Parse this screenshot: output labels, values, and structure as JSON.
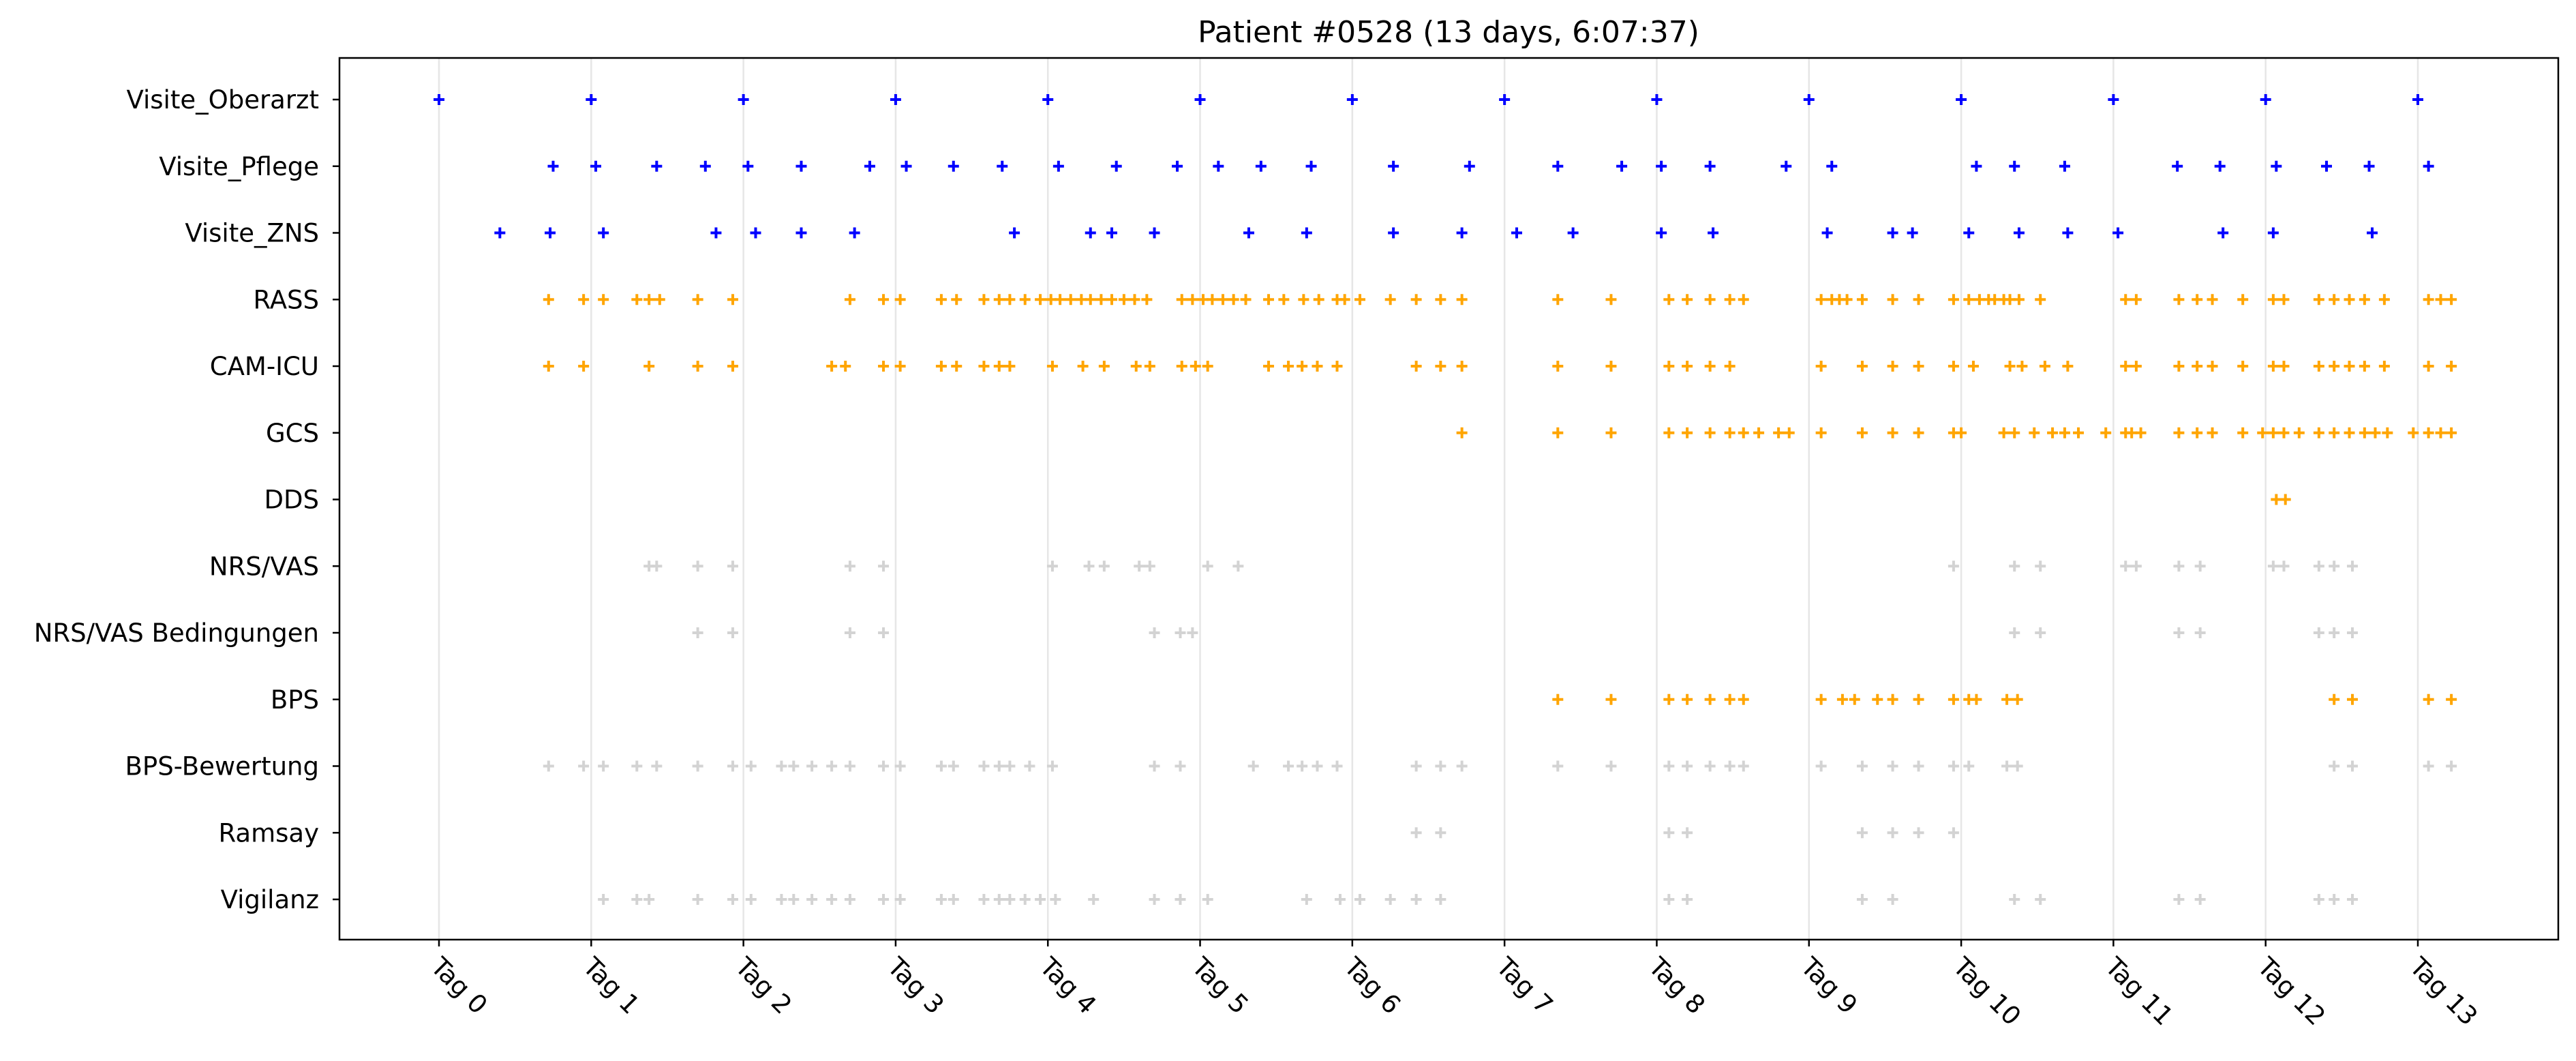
{
  "chart_data": {
    "type": "scatter",
    "title": "Patient #0528 (13 days, 6:07:37)",
    "xlabel": "",
    "ylabel": "",
    "x_unit": "days",
    "xlim": [
      -0.66,
      13.91
    ],
    "x_ticks": [
      0,
      1,
      2,
      3,
      4,
      5,
      6,
      7,
      8,
      9,
      10,
      11,
      12,
      13
    ],
    "x_tick_labels": [
      "Tag 0",
      "Tag 1",
      "Tag 2",
      "Tag 3",
      "Tag 4",
      "Tag 5",
      "Tag 6",
      "Tag 7",
      "Tag 8",
      "Tag 9",
      "Tag 10",
      "Tag 11",
      "Tag 12",
      "Tag 13"
    ],
    "vertical_gridlines": true,
    "marker": "+",
    "colors": {
      "physician": "#0000ff",
      "assessment": "#ffa500",
      "other": "#d3d3d3",
      "grid": "#e6e6e6"
    },
    "categories": [
      "Visite_Oberarzt",
      "Visite_Pflege",
      "Visite_ZNS",
      "RASS",
      "CAM-ICU",
      "GCS",
      "DDS",
      "NRS/VAS",
      "NRS/VAS Bedingungen",
      "BPS",
      "BPS-Bewertung",
      "Ramsay",
      "Vigilanz"
    ],
    "series": [
      {
        "name": "Visite_Oberarzt",
        "color": "#0000ff",
        "x": [
          0.0,
          1.0,
          2.0,
          3.0,
          4.0,
          5.0,
          6.0,
          7.0,
          8.0,
          9.0,
          10.0,
          11.0,
          12.0,
          13.0
        ]
      },
      {
        "name": "Visite_Pflege",
        "color": "#0000ff",
        "x": [
          0.75,
          1.03,
          1.43,
          1.75,
          2.03,
          2.38,
          2.83,
          3.07,
          3.38,
          3.7,
          4.07,
          4.45,
          4.85,
          5.12,
          5.4,
          5.73,
          6.27,
          6.77,
          7.35,
          7.77,
          8.03,
          8.35,
          8.85,
          9.15,
          10.1,
          10.35,
          10.68,
          11.42,
          11.7,
          12.07,
          12.4,
          12.68,
          13.07
        ]
      },
      {
        "name": "Visite_ZNS",
        "color": "#0000ff",
        "x": [
          0.4,
          0.73,
          1.08,
          1.82,
          2.08,
          2.38,
          2.73,
          3.78,
          4.28,
          4.42,
          4.7,
          5.32,
          5.7,
          6.27,
          6.72,
          7.08,
          7.45,
          8.03,
          8.37,
          9.12,
          9.55,
          9.68,
          10.05,
          10.38,
          10.7,
          11.03,
          11.72,
          12.05,
          12.7
        ]
      },
      {
        "name": "RASS",
        "color": "#ffa500",
        "x": [
          0.72,
          0.95,
          1.08,
          1.3,
          1.38,
          1.45,
          1.7,
          1.93,
          2.7,
          2.92,
          3.03,
          3.3,
          3.4,
          3.58,
          3.68,
          3.75,
          3.85,
          3.95,
          4.02,
          4.08,
          4.15,
          4.22,
          4.28,
          4.35,
          4.42,
          4.5,
          4.57,
          4.65,
          4.88,
          4.95,
          5.02,
          5.08,
          5.15,
          5.22,
          5.3,
          5.45,
          5.55,
          5.68,
          5.78,
          5.9,
          5.95,
          6.05,
          6.25,
          6.42,
          6.58,
          6.72,
          7.35,
          7.7,
          8.08,
          8.2,
          8.35,
          8.48,
          8.57,
          9.08,
          9.15,
          9.2,
          9.25,
          9.35,
          9.55,
          9.72,
          9.95,
          10.05,
          10.12,
          10.18,
          10.22,
          10.28,
          10.32,
          10.38,
          10.52,
          11.08,
          11.15,
          11.43,
          11.55,
          11.65,
          11.85,
          12.05,
          12.12,
          12.35,
          12.45,
          12.55,
          12.65,
          12.78,
          13.07,
          13.15,
          13.22
        ]
      },
      {
        "name": "CAM-ICU",
        "color": "#ffa500",
        "x": [
          0.72,
          0.95,
          1.38,
          1.7,
          1.93,
          2.58,
          2.67,
          2.92,
          3.03,
          3.3,
          3.4,
          3.58,
          3.68,
          3.75,
          4.03,
          4.23,
          4.37,
          4.58,
          4.67,
          4.88,
          4.97,
          5.05,
          5.45,
          5.58,
          5.67,
          5.77,
          5.9,
          6.42,
          6.58,
          6.72,
          7.35,
          7.7,
          8.08,
          8.2,
          8.35,
          8.48,
          9.08,
          9.35,
          9.55,
          9.72,
          9.95,
          10.08,
          10.32,
          10.4,
          10.55,
          10.7,
          11.08,
          11.15,
          11.43,
          11.55,
          11.65,
          11.85,
          12.05,
          12.12,
          12.35,
          12.45,
          12.55,
          12.65,
          12.78,
          13.07,
          13.22
        ]
      },
      {
        "name": "GCS",
        "color": "#ffa500",
        "x": [
          6.72,
          7.35,
          7.7,
          8.08,
          8.2,
          8.35,
          8.48,
          8.57,
          8.67,
          8.8,
          8.87,
          9.08,
          9.35,
          9.55,
          9.72,
          9.95,
          10.0,
          10.28,
          10.35,
          10.48,
          10.6,
          10.68,
          10.77,
          10.95,
          11.08,
          11.12,
          11.18,
          11.43,
          11.55,
          11.65,
          11.85,
          11.98,
          12.05,
          12.12,
          12.22,
          12.35,
          12.45,
          12.55,
          12.65,
          12.72,
          12.8,
          12.97,
          13.07,
          13.15,
          13.22
        ]
      },
      {
        "name": "DDS",
        "color": "#ffa500",
        "x": [
          12.07,
          12.13
        ]
      },
      {
        "name": "NRS/VAS",
        "color": "#d3d3d3",
        "x": [
          1.38,
          1.43,
          1.7,
          1.93,
          2.7,
          2.92,
          4.03,
          4.27,
          4.37,
          4.6,
          4.67,
          5.05,
          5.25,
          9.95,
          10.35,
          10.52,
          11.08,
          11.15,
          11.43,
          11.57,
          12.05,
          12.12,
          12.35,
          12.45,
          12.57
        ]
      },
      {
        "name": "NRS/VAS Bedingungen",
        "color": "#d3d3d3",
        "x": [
          1.7,
          1.93,
          2.7,
          2.92,
          4.7,
          4.87,
          4.95,
          10.35,
          10.52,
          11.43,
          11.57,
          12.35,
          12.45,
          12.57
        ]
      },
      {
        "name": "BPS",
        "color": "#ffa500",
        "x": [
          7.35,
          7.7,
          8.08,
          8.2,
          8.35,
          8.48,
          8.57,
          9.08,
          9.22,
          9.3,
          9.45,
          9.55,
          9.72,
          9.95,
          10.05,
          10.1,
          10.3,
          10.37,
          12.45,
          12.57,
          13.07,
          13.22
        ]
      },
      {
        "name": "BPS-Bewertung",
        "color": "#d3d3d3",
        "x": [
          0.72,
          0.95,
          1.08,
          1.3,
          1.43,
          1.7,
          1.93,
          2.05,
          2.25,
          2.33,
          2.45,
          2.58,
          2.7,
          2.92,
          3.03,
          3.3,
          3.38,
          3.58,
          3.68,
          3.75,
          3.88,
          4.03,
          4.7,
          4.87,
          5.35,
          5.58,
          5.67,
          5.77,
          5.9,
          6.42,
          6.58,
          6.72,
          7.35,
          7.7,
          8.08,
          8.2,
          8.35,
          8.48,
          8.57,
          9.08,
          9.35,
          9.55,
          9.72,
          9.95,
          10.05,
          10.3,
          10.37,
          12.45,
          12.57,
          13.07,
          13.22
        ]
      },
      {
        "name": "Ramsay",
        "color": "#d3d3d3",
        "x": [
          6.42,
          6.58,
          8.08,
          8.2,
          9.35,
          9.55,
          9.72,
          9.95
        ]
      },
      {
        "name": "Vigilanz",
        "color": "#d3d3d3",
        "x": [
          1.08,
          1.3,
          1.38,
          1.7,
          1.93,
          2.05,
          2.25,
          2.33,
          2.45,
          2.58,
          2.7,
          2.92,
          3.03,
          3.3,
          3.38,
          3.58,
          3.68,
          3.75,
          3.85,
          3.95,
          4.05,
          4.3,
          4.7,
          4.87,
          5.05,
          5.7,
          5.92,
          6.05,
          6.25,
          6.42,
          6.58,
          8.08,
          8.2,
          9.35,
          9.55,
          10.35,
          10.52,
          11.43,
          11.57,
          12.35,
          12.45,
          12.57
        ]
      }
    ]
  }
}
